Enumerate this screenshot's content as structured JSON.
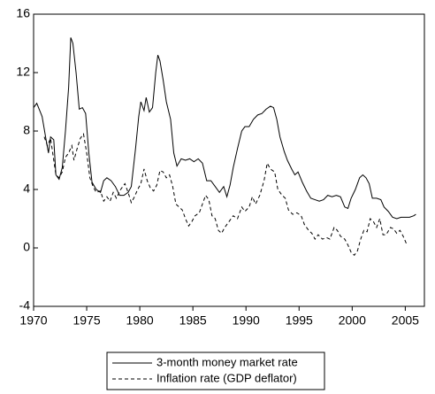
{
  "chart_data": {
    "type": "line",
    "xlim": [
      1970,
      2006.8
    ],
    "xticks": [
      1970,
      1975,
      1980,
      1985,
      1990,
      1995,
      2000,
      2005
    ],
    "ylim": [
      -4,
      16
    ],
    "yticks": [
      -4,
      0,
      4,
      8,
      12,
      16
    ],
    "grid": false,
    "series": [
      {
        "name": "3-month money market rate",
        "color": "#000000",
        "dash": "solid",
        "x": [
          1970.0,
          1970.3,
          1970.8,
          1971.2,
          1971.4,
          1971.6,
          1971.9,
          1972.1,
          1972.4,
          1972.7,
          1973.0,
          1973.3,
          1973.5,
          1973.7,
          1974.0,
          1974.3,
          1974.6,
          1974.9,
          1975.2,
          1975.5,
          1975.9,
          1976.3,
          1976.6,
          1976.9,
          1977.3,
          1977.7,
          1978.1,
          1978.5,
          1978.9,
          1979.2,
          1979.6,
          1979.9,
          1980.1,
          1980.4,
          1980.6,
          1980.9,
          1981.2,
          1981.5,
          1981.7,
          1981.9,
          1982.2,
          1982.5,
          1982.9,
          1983.2,
          1983.5,
          1983.9,
          1984.3,
          1984.7,
          1985.1,
          1985.5,
          1985.9,
          1986.3,
          1986.7,
          1987.1,
          1987.5,
          1987.9,
          1988.2,
          1988.5,
          1988.8,
          1989.2,
          1989.6,
          1989.9,
          1990.3,
          1990.7,
          1991.1,
          1991.5,
          1991.9,
          1992.3,
          1992.6,
          1992.9,
          1993.2,
          1993.6,
          1993.9,
          1994.3,
          1994.6,
          1994.9,
          1995.3,
          1995.7,
          1996.1,
          1996.5,
          1996.9,
          1997.3,
          1997.7,
          1998.1,
          1998.5,
          1998.9,
          1999.3,
          1999.6,
          1999.9,
          2000.3,
          2000.7,
          2001.0,
          2001.3,
          2001.6,
          2001.9,
          2002.3,
          2002.7,
          2003.0,
          2003.4,
          2003.8,
          2004.2,
          2004.6,
          2005.0,
          2005.4,
          2005.8,
          2006.0
        ],
        "values": [
          9.6,
          9.9,
          9,
          7.3,
          6.5,
          7.6,
          7.4,
          5,
          4.7,
          5.5,
          8.0,
          11,
          14.4,
          14.0,
          12,
          9.5,
          9.6,
          9.2,
          6.5,
          4.5,
          4,
          3.8,
          4.6,
          4.8,
          4.6,
          4.2,
          3.6,
          3.6,
          3.8,
          4.2,
          6.8,
          9,
          10,
          9.4,
          10.3,
          9.3,
          9.6,
          12,
          13.2,
          12.8,
          11.5,
          10,
          8.8,
          6.5,
          5.6,
          6.1,
          6,
          6.1,
          5.9,
          6.1,
          5.8,
          4.6,
          4.6,
          4.2,
          3.8,
          4.2,
          3.5,
          4.3,
          5.5,
          6.8,
          8,
          8.3,
          8.3,
          8.8,
          9.1,
          9.2,
          9.5,
          9.7,
          9.6,
          8.8,
          7.6,
          6.6,
          6.0,
          5.4,
          5.0,
          5.2,
          4.5,
          3.9,
          3.4,
          3.3,
          3.2,
          3.3,
          3.6,
          3.5,
          3.6,
          3.5,
          2.8,
          2.7,
          3.4,
          4.0,
          4.8,
          5.0,
          4.8,
          4.4,
          3.4,
          3.4,
          3.3,
          2.8,
          2.5,
          2.1,
          2.0,
          2.1,
          2.1,
          2.1,
          2.2,
          2.3
        ]
      },
      {
        "name": "Inflation rate (GDP deflator)",
        "color": "#000000",
        "dash": "dashed",
        "x": [
          1971.0,
          1971.3,
          1971.6,
          1971.9,
          1972.1,
          1972.4,
          1972.7,
          1973.0,
          1973.3,
          1973.6,
          1973.8,
          1974.1,
          1974.4,
          1974.7,
          1975.0,
          1975.3,
          1975.6,
          1975.9,
          1976.3,
          1976.6,
          1976.9,
          1977.2,
          1977.5,
          1977.8,
          1978.2,
          1978.6,
          1978.9,
          1979.2,
          1979.5,
          1979.8,
          1980.1,
          1980.4,
          1980.7,
          1981.0,
          1981.3,
          1981.6,
          1981.9,
          1982.2,
          1982.5,
          1982.8,
          1983.1,
          1983.4,
          1983.7,
          1984.0,
          1984.3,
          1984.6,
          1984.9,
          1985.2,
          1985.6,
          1985.9,
          1986.2,
          1986.5,
          1986.8,
          1987.1,
          1987.4,
          1987.7,
          1988.0,
          1988.4,
          1988.8,
          1989.2,
          1989.6,
          1989.9,
          1990.3,
          1990.6,
          1990.9,
          1991.3,
          1991.7,
          1992.0,
          1992.3,
          1992.7,
          1993.0,
          1993.4,
          1993.7,
          1994.0,
          1994.4,
          1994.8,
          1995.2,
          1995.5,
          1995.9,
          1996.2,
          1996.5,
          1996.8,
          1997.2,
          1997.6,
          1997.9,
          1998.3,
          1998.6,
          1998.9,
          1999.3,
          1999.6,
          1999.9,
          2000.2,
          2000.5,
          2000.8,
          2001.1,
          2001.4,
          2001.7,
          2002.0,
          2002.3,
          2002.6,
          2002.9,
          2003.2,
          2003.6,
          2003.9,
          2004.2,
          2004.5,
          2004.8,
          2005.1
        ],
        "values": [
          7.6,
          7.0,
          7.5,
          6.0,
          5.0,
          4.8,
          5.2,
          6.2,
          6.5,
          7.0,
          6.0,
          6.8,
          7.5,
          7.8,
          6.5,
          4.8,
          4.2,
          3.8,
          3.9,
          3.2,
          3.5,
          3.2,
          3.8,
          3.4,
          4.0,
          4.4,
          3.8,
          3.1,
          3.5,
          4.0,
          4.4,
          5.4,
          4.6,
          4.1,
          3.9,
          4.3,
          5.3,
          5.2,
          4.8,
          5.0,
          4.2,
          3.0,
          2.8,
          2.6,
          2.0,
          1.5,
          1.8,
          2.2,
          2.4,
          3.0,
          3.6,
          3.3,
          2.2,
          2.0,
          1.2,
          1.0,
          1.4,
          1.8,
          2.2,
          2.0,
          2.8,
          2.5,
          2.8,
          3.5,
          3.0,
          3.6,
          4.6,
          5.8,
          5.4,
          5.2,
          4.0,
          3.6,
          3.4,
          2.6,
          2.3,
          2.4,
          2.2,
          1.6,
          1.2,
          1.0,
          0.6,
          0.9,
          0.6,
          0.7,
          0.6,
          1.4,
          1.2,
          0.8,
          0.6,
          0.2,
          -0.3,
          -0.5,
          -0.2,
          0.6,
          1.2,
          1.1,
          2.0,
          1.8,
          1.4,
          2.0,
          0.9,
          0.9,
          1.4,
          1.3,
          1.0,
          1.2,
          0.8,
          0.3
        ]
      }
    ]
  }
}
